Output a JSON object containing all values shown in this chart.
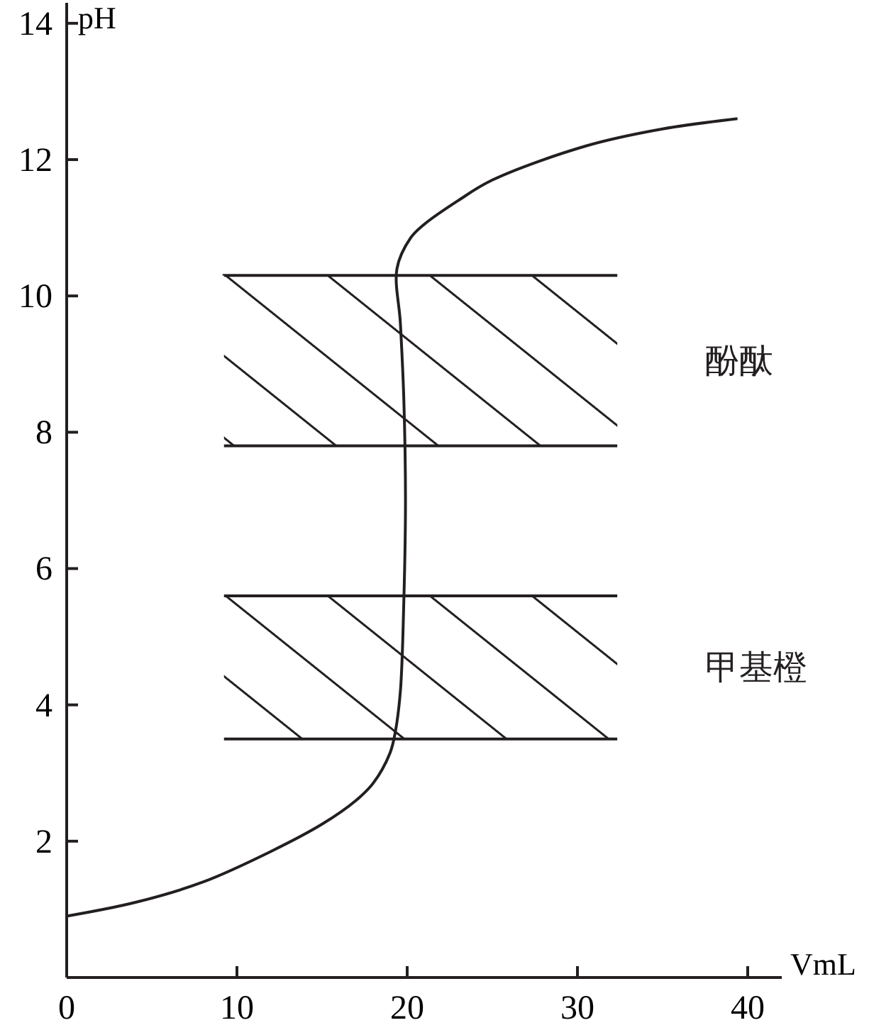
{
  "chart_data": {
    "type": "line",
    "xlabel": "VmL",
    "ylabel": "pH",
    "x": [
      0,
      4,
      8,
      12,
      15,
      17,
      18,
      19,
      19.3,
      19.6,
      19.8,
      19.9,
      19.8,
      19.6,
      19.4,
      20.2,
      21,
      23,
      25,
      30.5,
      35,
      39.4
    ],
    "series": [
      {
        "color": "#231f20",
        "values": [
          0.9,
          1.1,
          1.4,
          1.85,
          2.25,
          2.6,
          2.85,
          3.3,
          3.6,
          4.2,
          5.5,
          7,
          8.5,
          9.6,
          10.4,
          10.85,
          11.05,
          11.4,
          11.7,
          12.2,
          12.45,
          12.6
        ]
      }
    ],
    "xlim": [
      0,
      42
    ],
    "ylim": [
      0,
      14.3
    ],
    "xticks": [
      0,
      10,
      20,
      30,
      40
    ],
    "yticks": [
      2,
      4,
      6,
      8,
      10,
      12,
      14
    ],
    "bands": [
      {
        "axis": "y",
        "from": 7.8,
        "to": 10.3,
        "label": "酚酞",
        "color": "#231f20"
      },
      {
        "axis": "y",
        "from": 3.5,
        "to": 5.6,
        "label": "甲基橙",
        "color": "#231f20"
      }
    ],
    "grid": false,
    "marker": "none",
    "line_style": "solid"
  }
}
